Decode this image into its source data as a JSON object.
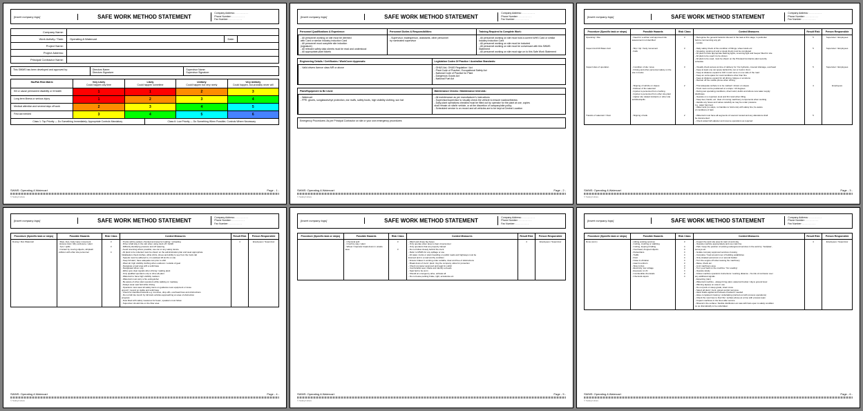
{
  "doc": {
    "logo_text": "[Insert company logo]",
    "title": "SAFE WORK METHOD STATEMENT",
    "contact": {
      "addr": "Company Address: . . . . . . . . . .",
      "phone": "Phone Number: . . . . . . . . . .",
      "fax": "Fax Number: . . . . . . . . . ."
    },
    "footer_doc": "SWMS: Operating A Watercart",
    "copyright": "© SafetyCulture"
  },
  "page1": {
    "fields": {
      "company": "Company Name:",
      "activity_label": "Work Activity / Task:",
      "activity_value": "Operating A Watercart",
      "date_label": "Date:",
      "project": "Project Name:",
      "address": "Project Address:",
      "contractor": "Principal Contractor Name:"
    },
    "approval": {
      "left": "This SWMS has been developed and approved by:",
      "dir_name": "Directors Name:",
      "dir_sig": "Directors Signature:",
      "sup_name": "Supervisor Name:",
      "sup_sig": "Supervisor Signature:"
    },
    "matrix": {
      "corner": "HazPak Risk Matrix",
      "cols": [
        {
          "t": "Very Likely",
          "s": "Could happen any time"
        },
        {
          "t": "Likely",
          "s": "Could happen sometime"
        },
        {
          "t": "Unlikely",
          "s": "Could happen but very rarely"
        },
        {
          "t": "Very Unlikely",
          "s": "Could happen, but probably never will"
        }
      ],
      "rows": [
        {
          "label": "Kill or cause permanent disability or ill health",
          "cells": [
            {
              "v": "1",
              "c": "#ff0000"
            },
            {
              "v": "1",
              "c": "#ff0000"
            },
            {
              "v": "2",
              "c": "#ff8c00"
            },
            {
              "v": "3",
              "c": "#ffff00"
            }
          ]
        },
        {
          "label": "Long term illness or serious injury",
          "cells": [
            {
              "v": "1",
              "c": "#ff0000"
            },
            {
              "v": "2",
              "c": "#ff8c00"
            },
            {
              "v": "3",
              "c": "#ffff00"
            },
            {
              "v": "4",
              "c": "#00ff00"
            }
          ]
        },
        {
          "label": "Medical attention and several days off work",
          "cells": [
            {
              "v": "2",
              "c": "#ff8c00"
            },
            {
              "v": "3",
              "c": "#ffff00"
            },
            {
              "v": "4",
              "c": "#00ff00"
            },
            {
              "v": "5",
              "c": "#00ffff"
            }
          ]
        },
        {
          "label": "First aid needed",
          "cells": [
            {
              "v": "3",
              "c": "#ffff00"
            },
            {
              "v": "4",
              "c": "#00ff00"
            },
            {
              "v": "5",
              "c": "#00ffff"
            },
            {
              "v": "6",
              "c": "#4682ff"
            }
          ]
        }
      ],
      "legend_left": "Class 1: Top Priority — Do Something Immediately; Appropriate Controls Mandatory",
      "legend_right": "Class 6: Low Priority — Do Something When Possible; Controls Where Necessary"
    },
    "page_no": "Page - 1 -"
  },
  "page2": {
    "sections": {
      "qual_h": "Personnel Qualifications & Experience:",
      "qual_b": [
        "- All personnel working on site must be deemed",
        "  with Card or similar Industry Induction Card",
        "- All personnel must complete site induction",
        "  (signature)",
        "- All relevant safety data sheets must be read and understood",
        "- All appropriate plant tickets"
      ],
      "duties_h": "Personnel Duties & Responsibilities:",
      "duties_b": [
        "- Supervisor, tradesperson, assistants, other personnel",
        "  by nominated supervisor"
      ],
      "train_h": "Training Required to Complete Work:",
      "train_b": [
        "- All personnel working on site must hold a current WHS Card or similar",
        "  Industry Induction Card",
        "- All personnel working on site must be inducted",
        "- All personnel working on site must be conversant with this SWMS",
        "  Statement",
        "- All personnel working on site must sign on to this Safe Work Statement"
      ],
      "eng_h": "Engineering Details / Certificates / WorkCover Approvals:",
      "eng_b": [
        "- Valid drivers licence class MR or above"
      ],
      "leg_h": "Legislation Codes Of Practice / Australian Standards:",
      "leg_b": [
        "- OH&S Act, OH&S Regulation / Act",
        "- Plant Code of Practice, Occupational Safety Act",
        "- National Code of Practice for Plant",
        "- Dangerous Goods Act",
        "- National Fuel Act"
      ],
      "plant_h": "Plant/Equipment to Be Used:",
      "plant_b": [
        "- Watercart",
        "- PPE: gloves, sunglasses/eye protection, ear muffs, safety boots, high visibility clothing, sun hat"
      ],
      "maint_h": "Maintenance Checks / Maintenance Intervals:",
      "maint_b": [
        "- All maintenance as per manufacturer's instructions",
        "- Supervisor/supervisor to visually check the vehicle to ensure roadworthiness",
        "- Daily plant operations checklist must be filled out by operator for the plant at use, copies",
        "  shall remain on site/in vehicle, or at the discretion of company/site policy",
        "- Scheduled service is on record and all vehicles are to be kept at Central Location"
      ],
      "emerg_h": "Emergency Procedures: As per Principal Contractor on site or your own emergency procedures"
    },
    "page_no": "Page - 2 -"
  },
  "haz_header": {
    "c1": "Procedure (Specific task or steps)",
    "c2": "Possible Hazards",
    "c3": "Risk Class",
    "c4": "Control Measures",
    "c5": "Result Risk",
    "c6": "Person Responsible"
  },
  "page3": {
    "rows": [
      {
        "task": "Operating / Site",
        "haz": [
          "- Need for a written and approved risk assessment not identified"
        ],
        "rc": "3",
        "cm": [
          "- Recognise the general hazards inherent in the task at this stage; in particular",
          "  before commencing any job",
          "- Locate"
        ],
        "rr": "5",
        "pr": "Supervisor / Employees"
      },
      {
        "task": "Inspect And Fill Water-Cart",
        "haz": [
          "- Slip / trip / body movement",
          "- Falls"
        ],
        "rc": "3",
        "cm": [
          "- Daily safety check of the condition of fittings, wheel studs etc",
          "- Greasing, topping oil and a visual check must be completed",
          "- All plant to have appropriate flashing lights, reversing light and beeper fitted for site",
          " ",
          "- All plant to be used it to be shown",
          "- All plant to be used, must be shown on the Principal Contractor plant security",
          "  schedule"
        ],
        "rr": "5",
        "pr": "Supervisor / Employees"
      },
      {
        "task": "Inspect sites of operation",
        "haz": [
          "- Condition of site / area",
          "- Driving and other personnel safety on the site in trucks"
        ],
        "rc": "3",
        "cm": [
          "- Visually check access at time of delivery for: fire hydrants, covered drainage, overhead",
          " ",
          "- Keep at least one car space behind the car or truck in front",
          "- Keep at distance expand to 100 m and move on one side of the road",
          "- Keep an extra space for road conditions other than fine",
          "- Keep at distance expand for all driving, fatigue or emotions",
          "- Remain off the mobile phone when driving"
        ],
        "rr": "5",
        "pr": "Supervisor / Employees"
      },
      {
        "task": "",
        "haz": [
          "- Slipping of vehicle on slopes",
          "- Rollover of the watercart",
          "- Injuries to personnel from crushing",
          "- Injuries to personnel from other site plant",
          "- Higher site related incidents or other site activities/spills"
        ],
        "rc": "2",
        "cm": [
          "- That adequate surface is to be marked / shown on slopes",
          "- Truck must not be positioned on a slope >10 degrees",
          "- During wet operating conditions, direct wind, debris and where new water supply",
          "  distributes",
          " ",
          "- Operate on a reported, level and firm land when filling",
          "- Keep feet, hands, etc. clear of moving machinery components when working",
          "- Handle any hoses and valves carefully as may be under pressure",
          "  (i.e. water hammer)",
          "- Water tank (no steps, no handles to hold onto) with safety line; be aware",
          "  of conditions of tank"
        ],
        "rr": "4",
        "pr": "Employees"
      },
      {
        "task": "Transits of watercart / Dust",
        "haz": [
          "- Slipping of tank"
        ],
        "rc": "2",
        "cm": [
          "- Watercart must have all segments of reservoir tested and any alterations shall",
          "  be documented",
          "- Check watercraft adjuster and resume operations as required"
        ],
        "rr": "5",
        "pr": ""
      }
    ],
    "page_no": "Page - 3 -"
  },
  "page4": {
    "rows": [
      {
        "task": "Dosing / Run Watercart",
        "haz": [
          "- Slips, trips, body injury movement",
          "- Excess dust / dirty enclosure / plant",
          "- Tyre / spills",
          "- Contact by moving objects, whiplash collision with other site personnel"
        ],
        "rc": "3\n\n3\n\n4",
        "cm": [
          "- Trucks will be parked, chocked and area for loading / unloading",
          "- Driver shall stay in the cab when using track off / forklift",
          "- Difficulty identifying pressure and off watering",
          " ",
          "- Avoid reversing where possible; use car on any safety device",
          "- All plant to be inducted must be shown on the administration plan and wear appropriate",
          "  Initialisation check clothes, white shirts, shoes and ability to see from the truck cab",
          "- Speeds must be adhered to, it is advised 20 km/hr on site",
          "- Keep full alert, have adequate rest prior to shift",
          "- Wear all, high visibility clothing when outdoors / outside of gear",
          " ",
          "- Designate a load area with a solid base",
          "- Designated driver only",
          "- Either give clear signals when driving / waiting plant",
          "- Only qualified operators only to drive all plant",
          "- Watercart to have high visibility markers",
          "- Watercart must carry a fire extinguisher",
          "- Be aware of other plant operators while walking on roadway",
          "- Always wear seat belt while driving",
          "- Operators must wear all safety items on guidance near equipment or loose",
          "  ground / mound on stable and solid base",
          "- Check for identified hazards e.g. trenches, drop-offs, overhead lines and obstructions",
          "- Do not fall into trench by full track vehicles approaching an area of obstruction",
          "  progress",
          "- Dust fitted with safety measures for beam, speakers must follow",
          "- Supervisor should ride on the fitter area"
        ],
        "rr": "4",
        "pr": "Employees / Supervisor"
      }
    ],
    "page_no": "Page - 4 -"
  },
  "page5": {
    "rows": [
      {
        "task": "",
        "haz": [
          "- Chemical spill",
          "- Crush by way / plant",
          "",
          "- Wheel / Operator break down in unsafe area"
        ],
        "rc": "3\n\n\n3",
        "cm": [
          "- Wash and chase big hoses",
          "- Only operate when area is clear of personnel",
          "- Only operators that are properly trained",
          "- Do not follow closely behind the truck",
          "- Refer to MSDS for any spillage or use",
          " ",
          "- All water, trucks or plant travelling on public roads and highways must be",
          "  licensed and in a road worthy condition",
          "- Ensure brakes in working order suitable, clear and free of obstructions",
          "- Break down of truck / plant: ring the company; allow for protection",
          "- Check computer approved and legal for public",
          "- Comfortable seat, shade and identify exceeds",
          "- Seat belt to be worn",
          "- Should an emergency arise, activate all",
          "- Do not leave parking brake, tight, accelerate etc"
        ],
        "rr": "4",
        "pr": "Employees / Supervisor"
      }
    ],
    "page_no": "Page - 5 -"
  },
  "page6": {
    "rows": [
      {
        "task": "Done (cont.)",
        "haz": [
          "- Hitting existing services",
          "",
          "- Cutting, crushing or stabbing",
          "- Cutting, tripping & falling",
          "- Overhead, dropped objects",
          "- Pedestrians",
          "- Traffic",
          "- Dust",
          "- Noise & vibration",
          "- Heat & sunburn",
          "- Slips & trips",
          "- Electricity, low voltage",
          "- Exposure to UV",
          "- Combustible chemicals",
          "- Chemical vapors"
        ],
        "rc": "3\n\n4\n4\n4\n4\n4\n4\n3\n3\n3\n4\n3\n4",
        "cm": [
          "- Inspect the work site area for start of work day",
          "- Operate machine appropriately and use main line",
          "- Park / keep the position of existing underground services in the work by: 'buttplate',",
          "  surveys etc.",
          "- Isolate company approved services crossing",
          "- Complete / hook around over of building establishes",
          "- Only situated personnel on or around builder",
          "- Turn the engine off when leaving the machinery",
          "- Raise, check etc.",
          "- Limit machinery area",
          "- Turn your back on the machine: 'No Loading'",
          "- Operate slowly",
          "- Follow machine operators instructions / working distance - No risk of confusion over",
          "  any additional signals",
          "- Expecting (rain)",
          "- Watercart machine - always bring plant, watercart bucket / dig to ground level",
          "- Warning tape(s) on area in use",
          "- Do not park on steep grade, intact cross",
          "- Select all plant / truck, gravel central rest area",
          "- Hand brake applied and wheels chocked if needed",
          "   ",
          "- Have completed crossing / undertaking (carried out with process operations)",
          "- Check the new lines to their file / surface above at a time with process team",
          "- Inspect machines in the lines after service",
          "- Mineral in the surface / flexible distribution etc was with bars open to safely condition",
          "  so as dramatically to be undertaken"
        ],
        "rr": "4",
        "pr": "Employees / Supervisor"
      }
    ],
    "page_no": "Page - 6 -"
  }
}
